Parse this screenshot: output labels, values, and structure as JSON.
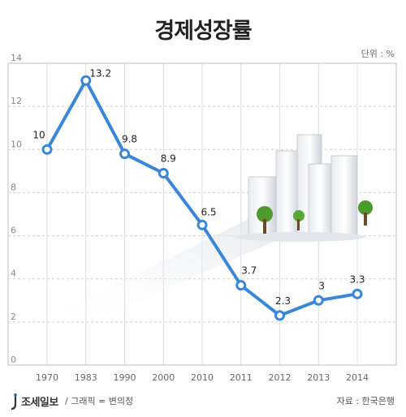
{
  "header": {
    "title": "경제성장률",
    "unit": "단위 : %"
  },
  "footer": {
    "publisher": "조세일보",
    "graphic": "/ 그래픽 = 변의정",
    "source": "자료 : 한국은행"
  },
  "chart_data": {
    "type": "line",
    "title": "경제성장률",
    "xlabel": "",
    "ylabel": "",
    "categories": [
      "1970",
      "1983",
      "1990",
      "2000",
      "2010",
      "2011",
      "2012",
      "2013",
      "2014"
    ],
    "values": [
      10,
      13.2,
      9.8,
      8.9,
      6.5,
      3.7,
      2.3,
      3,
      3.3
    ],
    "data_labels": [
      "10",
      "13.2",
      "9.8",
      "8.9",
      "6.5",
      "3.7",
      "2.3",
      "3",
      "3.3"
    ],
    "yticks": [
      "0",
      "2",
      "4",
      "6",
      "8",
      "10",
      "12",
      "14"
    ],
    "ylim": [
      0,
      14
    ],
    "grid": "horizontal dashed + vertical",
    "line_color": "#3a86d8"
  }
}
